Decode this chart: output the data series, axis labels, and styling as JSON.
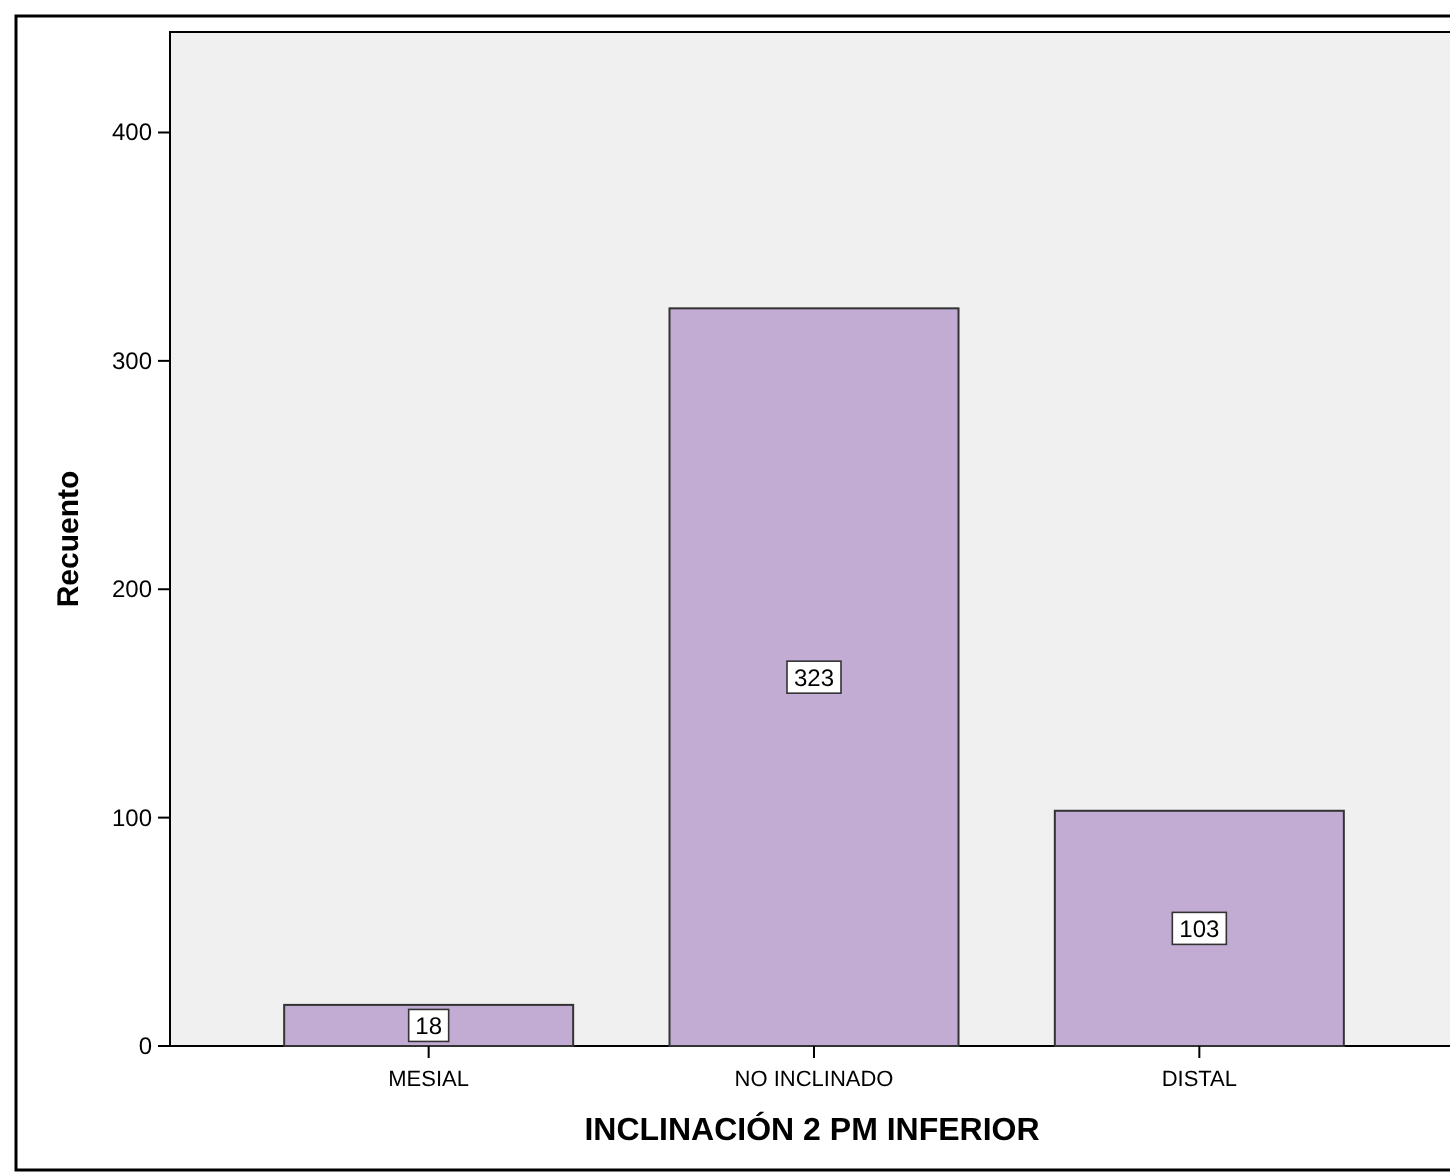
{
  "chart_data": {
    "type": "bar",
    "xlabel": "INCLINACIÓN 2 PM INFERIOR",
    "ylabel": "Recuento",
    "categories": [
      "MESIAL",
      "NO INCLINADO",
      "DISTAL"
    ],
    "values": [
      18,
      323,
      103
    ],
    "color": "#c2acd4",
    "ylim": [
      0,
      444
    ],
    "yticks": [
      0,
      100,
      200,
      300,
      400
    ],
    "data_labels": true
  }
}
